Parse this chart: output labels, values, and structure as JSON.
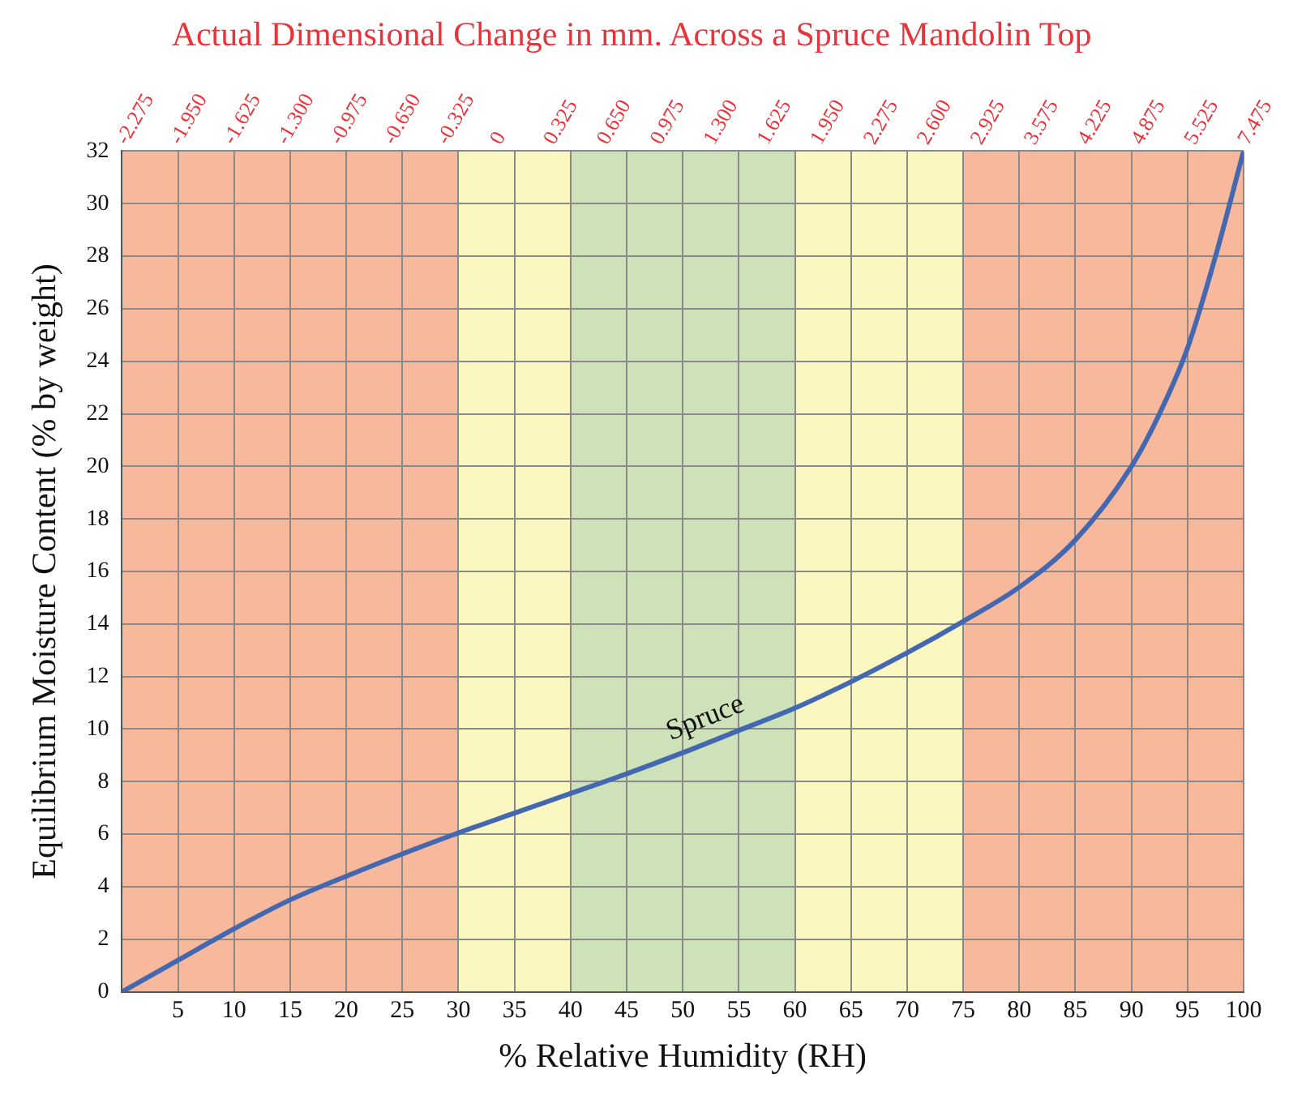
{
  "chart_data": {
    "type": "line",
    "title": "Actual Dimensional Change in mm. Across a Spruce Mandolin Top",
    "xlabel": "% Relative Humidity (RH)",
    "ylabel": "Equilibrium Moisture Content (% by weight)",
    "x": [
      0,
      5,
      10,
      15,
      20,
      25,
      30,
      35,
      40,
      45,
      50,
      55,
      60,
      65,
      70,
      75,
      80,
      85,
      90,
      92.5,
      95,
      97.5,
      100
    ],
    "series": [
      {
        "name": "Spruce",
        "color": "#4468b0",
        "values": [
          0,
          1.2,
          2.4,
          3.5,
          4.4,
          5.25,
          6.05,
          6.8,
          7.55,
          8.3,
          9.1,
          9.95,
          10.8,
          11.8,
          12.9,
          14.1,
          15.4,
          17.2,
          20,
          22,
          24.5,
          28,
          32
        ]
      }
    ],
    "xlim": [
      0,
      100
    ],
    "xticks": [
      5,
      10,
      15,
      20,
      25,
      30,
      35,
      40,
      45,
      50,
      55,
      60,
      65,
      70,
      75,
      80,
      85,
      90,
      95,
      100
    ],
    "ylim": [
      0,
      32
    ],
    "yticks": [
      0,
      2,
      4,
      6,
      8,
      10,
      12,
      14,
      16,
      18,
      20,
      22,
      24,
      26,
      28,
      30,
      32
    ],
    "annotations": [
      "-2.275",
      "-1.950",
      "-1.625",
      "-1.300",
      "-0.975",
      "-0.650",
      "-0.325",
      "0",
      "0.325",
      "0.650",
      "0.975",
      "1.300",
      "1.625",
      "1.950",
      "2.275",
      "2.600",
      "2.925",
      "3.575",
      "4.225",
      "4.875",
      "5.525",
      "7.475"
    ],
    "bands": [
      {
        "axis": "x",
        "from": 0,
        "to": 30,
        "color": "#f8b89c"
      },
      {
        "axis": "x",
        "from": 30,
        "to": 40,
        "color": "#fbf7c0"
      },
      {
        "axis": "x",
        "from": 40,
        "to": 60,
        "color": "#cde2b8"
      },
      {
        "axis": "x",
        "from": 60,
        "to": 75,
        "color": "#fbf7c0"
      },
      {
        "axis": "x",
        "from": 75,
        "to": 100,
        "color": "#f8b89c"
      }
    ],
    "grid": true,
    "legend": false,
    "marker": "none",
    "line_style": "solid"
  }
}
